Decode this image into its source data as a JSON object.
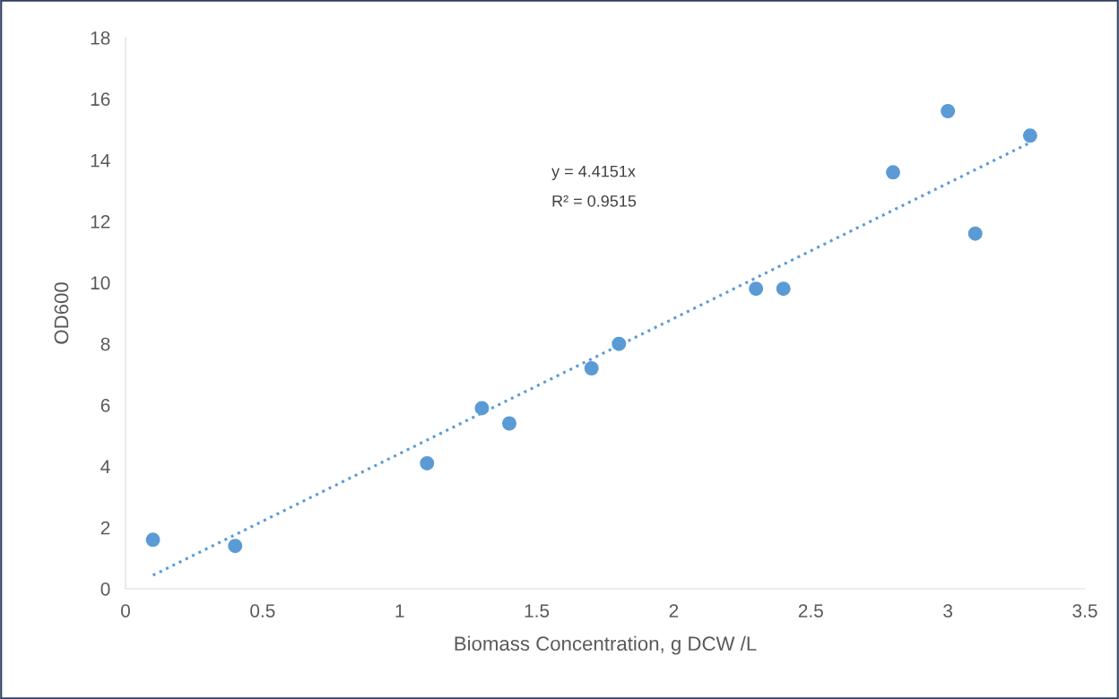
{
  "chart_data": {
    "type": "scatter",
    "xlabel": "Biomass Concentration, g DCW /L",
    "ylabel": "OD600",
    "xlim": [
      0,
      3.5
    ],
    "xticks": [
      0,
      0.5,
      1,
      1.5,
      2,
      2.5,
      3,
      3.5
    ],
    "ylim": [
      0,
      18
    ],
    "yticks": [
      0,
      2,
      4,
      6,
      8,
      10,
      12,
      14,
      16,
      18
    ],
    "grid": false,
    "marker": "circle",
    "series": [
      {
        "color": "#5b9bd5",
        "x": [
          0.1,
          0.4,
          1.1,
          1.3,
          1.4,
          1.7,
          1.8,
          2.3,
          2.4,
          2.8,
          3.0,
          3.1,
          3.3
        ],
        "values": [
          1.6,
          1.4,
          4.1,
          5.9,
          5.4,
          7.2,
          8.0,
          9.8,
          9.8,
          13.6,
          15.6,
          11.6,
          14.8
        ]
      },
      {
        "type": "line",
        "line_style": "dotted",
        "marker": "none",
        "color": "#5b9bd5",
        "x": [
          0.1,
          3.3
        ],
        "values": [
          0.44,
          14.57
        ]
      }
    ],
    "annotations": [
      "y = 4.4151x",
      "R² = 0.9515"
    ]
  }
}
